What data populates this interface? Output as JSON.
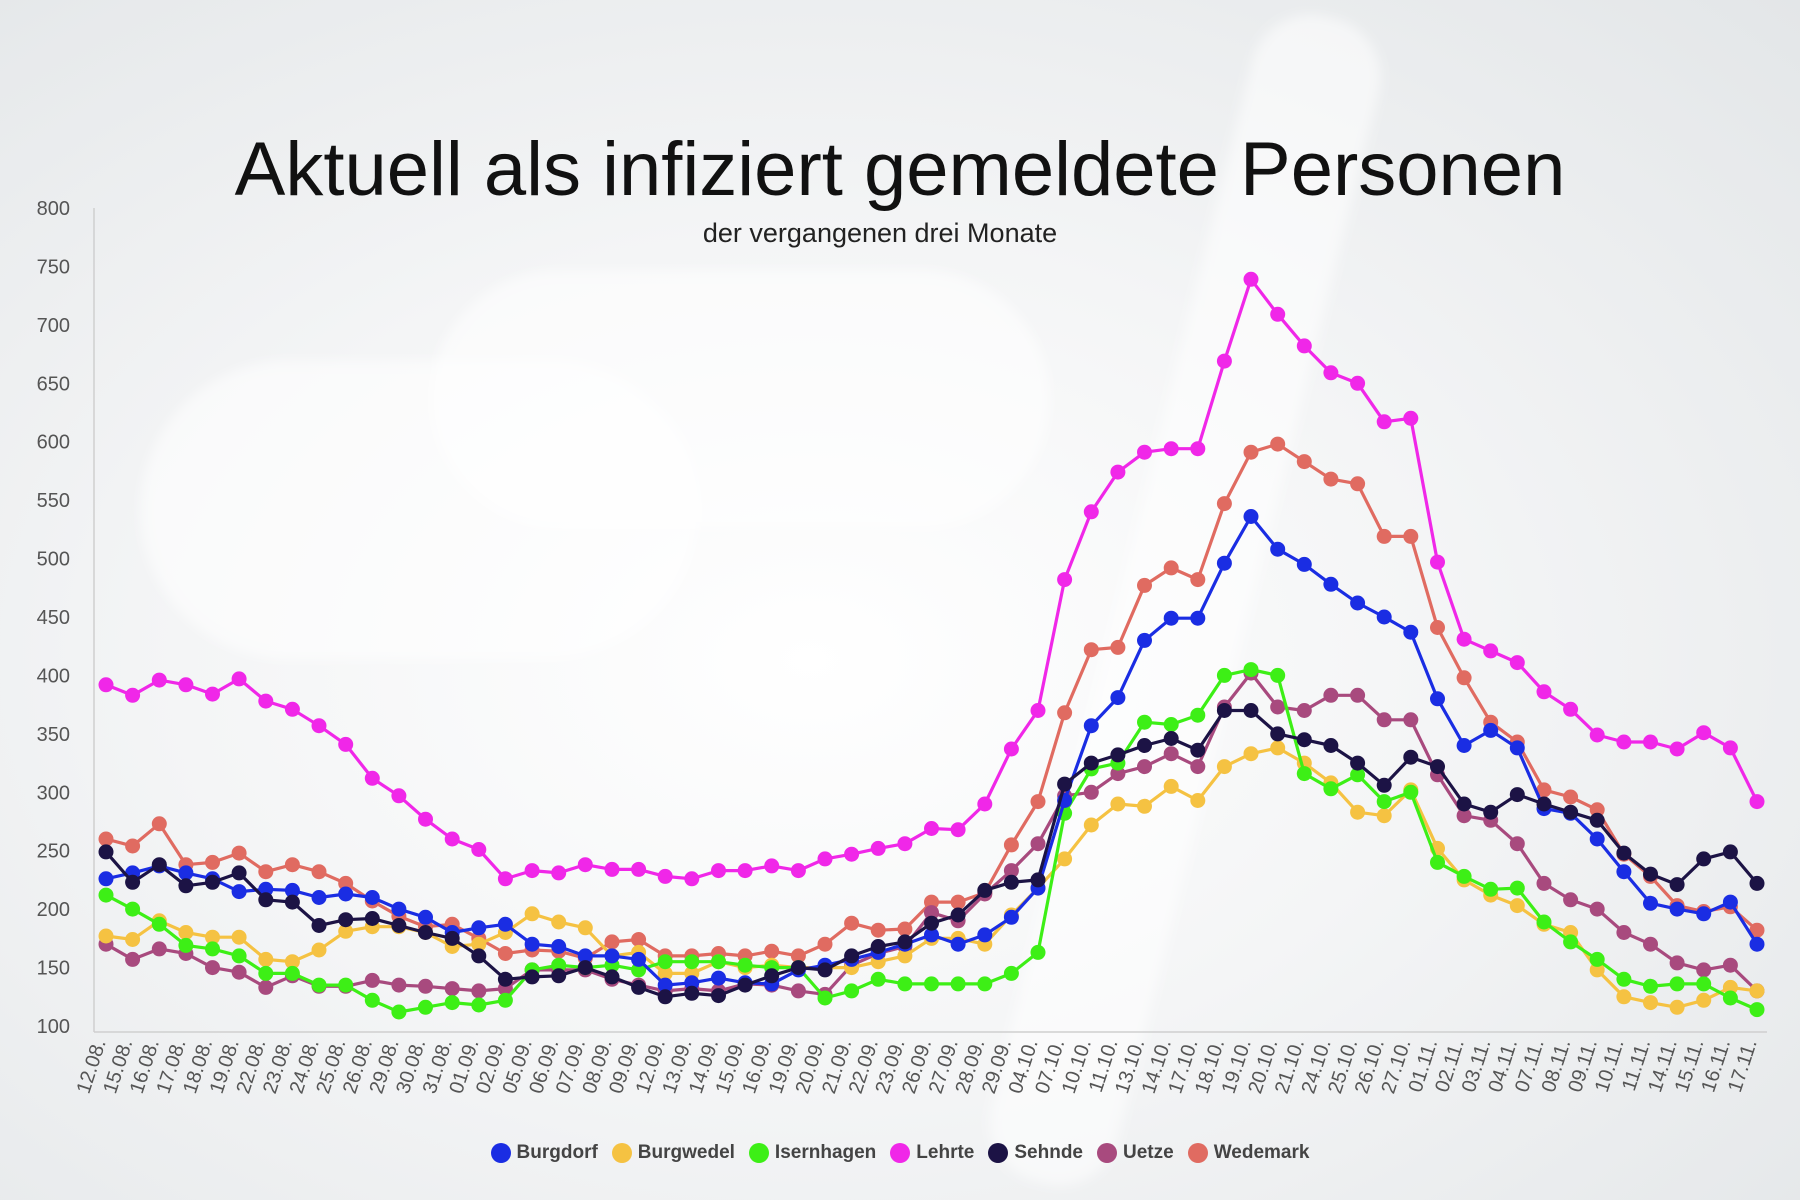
{
  "chart_data": {
    "type": "line",
    "title": "Aktuell als infiziert gemeldete Personen",
    "subtitle": "der vergangenen drei Monate",
    "xlabel": "",
    "ylabel": "",
    "ylim": [
      100,
      800
    ],
    "yticks": [
      100,
      150,
      200,
      250,
      300,
      350,
      400,
      450,
      500,
      550,
      600,
      650,
      700,
      750,
      800
    ],
    "grid": false,
    "legend_position": "bottom",
    "categories": [
      "12.08.",
      "15.08.",
      "16.08.",
      "17.08.",
      "18.08.",
      "19.08.",
      "22.08.",
      "23.08.",
      "24.08.",
      "25.08.",
      "26.08.",
      "29.08.",
      "30.08.",
      "31.08.",
      "01.09.",
      "02.09.",
      "05.09.",
      "06.09.",
      "07.09.",
      "08.09.",
      "09.09.",
      "12.09.",
      "13.09.",
      "14.09.",
      "15.09.",
      "16.09.",
      "19.09.",
      "20.09.",
      "21.09.",
      "22.09.",
      "23.09.",
      "26.09.",
      "27.09.",
      "28.09.",
      "29.09.",
      "04.10.",
      "07.10.",
      "10.10.",
      "11.10.",
      "13.10.",
      "14.10.",
      "17.10.",
      "18.10.",
      "19.10.",
      "20.10.",
      "21.10.",
      "24.10.",
      "25.10.",
      "26.10.",
      "27.10.",
      "01.11.",
      "02.11.",
      "03.11.",
      "04.11.",
      "07.11.",
      "08.11.",
      "09.11.",
      "10.11.",
      "11.11.",
      "14.11.",
      "15.11.",
      "16.11.",
      "17.11."
    ],
    "series": [
      {
        "name": "Wedemark",
        "color": "#e06b61",
        "values": [
          260,
          254,
          273,
          238,
          240,
          248,
          232,
          238,
          232,
          222,
          207,
          194,
          185,
          187,
          175,
          162,
          165,
          164,
          158,
          172,
          174,
          160,
          160,
          162,
          160,
          164,
          160,
          170,
          188,
          182,
          183,
          206,
          206,
          214,
          255,
          292,
          368,
          422,
          424,
          477,
          492,
          482,
          547,
          591,
          598,
          583,
          568,
          564,
          519,
          519,
          441,
          398,
          360,
          343,
          302,
          296,
          285,
          247,
          228,
          203,
          198,
          202,
          182
        ]
      },
      {
        "name": "Uetze",
        "color": "#a84a7e",
        "values": [
          170,
          157,
          166,
          162,
          150,
          146,
          133,
          143,
          134,
          134,
          139,
          135,
          134,
          132,
          130,
          132,
          148,
          148,
          148,
          140,
          135,
          130,
          132,
          130,
          136,
          135,
          130,
          127,
          152,
          162,
          168,
          197,
          190,
          213,
          233,
          256,
          297,
          300,
          316,
          322,
          333,
          322,
          373,
          402,
          373,
          370,
          383,
          383,
          362,
          362,
          315,
          280,
          276,
          256,
          222,
          208,
          200,
          180,
          170,
          154,
          148,
          152,
          130
        ]
      },
      {
        "name": "Burgwedel",
        "color": "#f5c242",
        "values": [
          177,
          174,
          190,
          180,
          176,
          176,
          157,
          155,
          165,
          181,
          185,
          185,
          180,
          168,
          170,
          180,
          196,
          189,
          184,
          160,
          163,
          145,
          145,
          155,
          150,
          152,
          150,
          150,
          150,
          155,
          160,
          175,
          175,
          170,
          195,
          218,
          243,
          272,
          290,
          288,
          305,
          293,
          322,
          333,
          338,
          325,
          308,
          283,
          280,
          302,
          252,
          225,
          212,
          203,
          187,
          180,
          148,
          125,
          120,
          116,
          122,
          133,
          130
        ]
      },
      {
        "name": "Isernhagen",
        "color": "#3def16",
        "values": [
          212,
          200,
          187,
          169,
          166,
          160,
          145,
          145,
          135,
          135,
          122,
          112,
          116,
          120,
          118,
          122,
          148,
          152,
          150,
          152,
          148,
          155,
          155,
          155,
          152,
          150,
          150,
          124,
          130,
          140,
          136,
          136,
          136,
          136,
          145,
          163,
          282,
          320,
          325,
          360,
          358,
          366,
          400,
          405,
          400,
          316,
          303,
          315,
          292,
          300,
          240,
          228,
          217,
          218,
          189,
          172,
          157,
          140,
          134,
          136,
          136,
          124,
          114
        ]
      },
      {
        "name": "Burgdorf",
        "color": "#1a2de3",
        "values": [
          226,
          231,
          237,
          231,
          226,
          215,
          217,
          216,
          210,
          213,
          210,
          200,
          193,
          180,
          184,
          187,
          170,
          168,
          160,
          160,
          157,
          135,
          137,
          141,
          137,
          136,
          148,
          152,
          157,
          163,
          170,
          178,
          170,
          178,
          193,
          218,
          293,
          357,
          381,
          430,
          449,
          449,
          496,
          536,
          508,
          495,
          478,
          462,
          450,
          437,
          380,
          340,
          353,
          338,
          286,
          282,
          260,
          232,
          205,
          200,
          196,
          206,
          170
        ]
      },
      {
        "name": "Sehnde",
        "color": "#1c1345",
        "values": [
          249,
          223,
          238,
          220,
          223,
          231,
          208,
          206,
          186,
          191,
          192,
          186,
          180,
          175,
          160,
          140,
          142,
          143,
          150,
          142,
          133,
          125,
          128,
          126,
          135,
          143,
          150,
          148,
          160,
          168,
          172,
          188,
          195,
          216,
          223,
          225,
          307,
          325,
          332,
          340,
          346,
          336,
          370,
          370,
          350,
          345,
          340,
          325,
          306,
          330,
          322,
          290,
          283,
          298,
          290,
          283,
          276,
          248,
          230,
          221,
          243,
          249,
          222
        ]
      },
      {
        "name": "Lehrte",
        "color": "#f027e8",
        "values": [
          392,
          383,
          396,
          392,
          384,
          397,
          378,
          371,
          357,
          341,
          312,
          297,
          277,
          260,
          251,
          226,
          233,
          231,
          238,
          234,
          234,
          228,
          226,
          233,
          233,
          237,
          233,
          243,
          247,
          252,
          256,
          269,
          268,
          290,
          337,
          370,
          482,
          540,
          574,
          591,
          594,
          594,
          669,
          739,
          709,
          682,
          659,
          650,
          617,
          620,
          497,
          431,
          421,
          411,
          386,
          371,
          349,
          343,
          343,
          337,
          351,
          338,
          292
        ]
      }
    ]
  },
  "legend": {
    "items": [
      {
        "label": "Burgdorf",
        "color": "#1a2de3"
      },
      {
        "label": "Burgwedel",
        "color": "#f5c242"
      },
      {
        "label": "Isernhagen",
        "color": "#3def16"
      },
      {
        "label": "Lehrte",
        "color": "#f027e8"
      },
      {
        "label": "Sehnde",
        "color": "#1c1345"
      },
      {
        "label": "Uetze",
        "color": "#a84a7e"
      },
      {
        "label": "Wedemark",
        "color": "#e06b61"
      }
    ]
  }
}
